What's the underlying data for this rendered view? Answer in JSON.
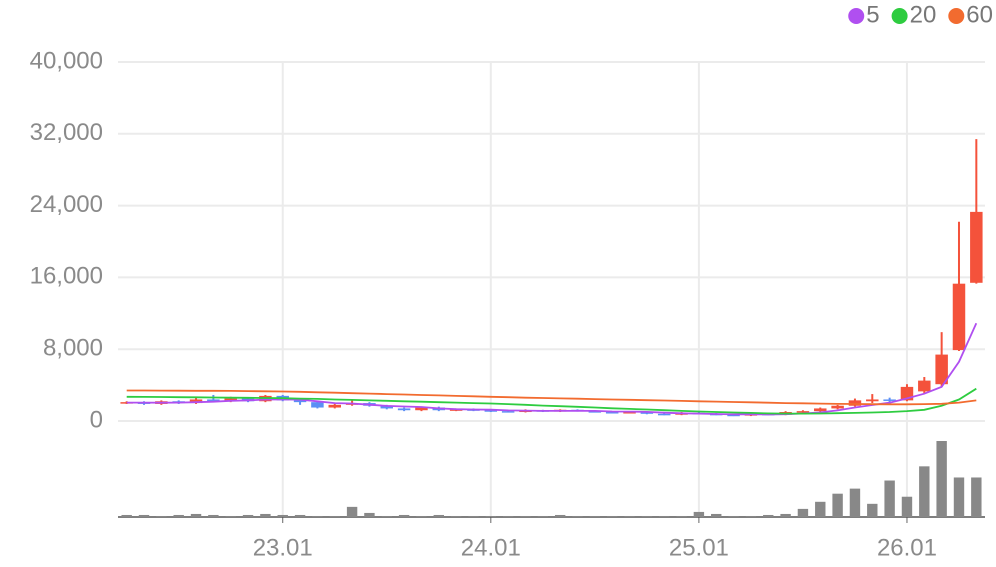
{
  "chart_data": {
    "type": "candlestick",
    "categories": [
      null,
      null,
      null,
      null,
      null,
      null,
      null,
      null,
      null,
      "23.01",
      null,
      null,
      null,
      null,
      null,
      null,
      null,
      null,
      null,
      null,
      null,
      "24.01",
      null,
      null,
      null,
      null,
      null,
      null,
      null,
      null,
      null,
      null,
      null,
      "25.01",
      null,
      null,
      null,
      null,
      null,
      null,
      null,
      null,
      null,
      null,
      null,
      "26.01",
      null,
      null,
      null,
      null
    ],
    "open": [
      2000,
      2100,
      1900,
      2200,
      2000,
      2400,
      2200,
      2500,
      2200,
      2800,
      2300,
      2100,
      1500,
      1800,
      2000,
      1700,
      1400,
      1200,
      1500,
      1200,
      1300,
      1200,
      1100,
      1000,
      1200,
      1050,
      1250,
      1100,
      1000,
      900,
      1000,
      800,
      700,
      900,
      800,
      700,
      600,
      800,
      700,
      1000,
      1100,
      1400,
      1700,
      2200,
      2400,
      2300,
      3300,
      4100,
      7900,
      15400
    ],
    "close": [
      2100,
      1900,
      2200,
      2000,
      2400,
      2200,
      2500,
      2200,
      2800,
      2300,
      2100,
      1500,
      1800,
      2000,
      1700,
      1400,
      1200,
      1500,
      1200,
      1300,
      1200,
      1100,
      1000,
      1200,
      1050,
      1250,
      1100,
      1000,
      900,
      1000,
      800,
      700,
      900,
      800,
      700,
      600,
      800,
      700,
      1000,
      1100,
      1400,
      1700,
      2300,
      2400,
      2300,
      3800,
      4500,
      7400,
      15300,
      23300
    ],
    "high": [
      2200,
      2200,
      2300,
      2300,
      2600,
      2900,
      2700,
      2600,
      2900,
      2900,
      2400,
      2200,
      1900,
      2300,
      2100,
      1800,
      1500,
      1600,
      1600,
      1400,
      1400,
      1300,
      1200,
      1300,
      1250,
      1300,
      1300,
      1200,
      1100,
      1100,
      1050,
      900,
      1000,
      1000,
      900,
      800,
      900,
      900,
      1100,
      1200,
      1500,
      1800,
      2500,
      3000,
      2600,
      4100,
      4900,
      9900,
      22200,
      31400
    ],
    "low": [
      1900,
      1800,
      1800,
      1900,
      1900,
      2100,
      2100,
      2100,
      2100,
      2200,
      1800,
      1400,
      1400,
      1700,
      1600,
      1300,
      1100,
      1100,
      1100,
      1100,
      1100,
      1000,
      950,
      950,
      1000,
      1000,
      1050,
      950,
      850,
      850,
      750,
      650,
      650,
      750,
      650,
      550,
      550,
      650,
      650,
      900,
      1000,
      1300,
      1600,
      2000,
      2100,
      2200,
      3100,
      3800,
      7800,
      15300
    ],
    "up_color": "#f4523b",
    "down_color": "#5b8ff5",
    "volume": [
      2,
      2,
      1,
      2,
      3,
      2,
      1,
      2,
      3,
      2,
      2,
      1,
      1,
      10,
      4,
      1,
      2,
      1,
      2,
      1,
      1,
      1,
      1,
      1,
      1,
      2,
      1,
      1,
      1,
      1,
      1,
      1,
      1,
      5,
      3,
      1,
      1,
      2,
      3,
      8,
      15,
      23,
      28,
      13,
      36,
      20,
      50,
      75,
      39,
      39
    ],
    "volume_color": "#888888",
    "series": [
      {
        "name": "5",
        "color": "#b04ff0",
        "values": [
          2050,
          2050,
          2040,
          2050,
          2100,
          2150,
          2250,
          2300,
          2400,
          2400,
          2380,
          2200,
          2000,
          1950,
          1820,
          1680,
          1620,
          1560,
          1400,
          1320,
          1280,
          1260,
          1180,
          1160,
          1130,
          1120,
          1120,
          1120,
          1060,
          1050,
          1010,
          920,
          860,
          820,
          780,
          740,
          760,
          720,
          760,
          840,
          960,
          1180,
          1500,
          1780,
          2040,
          2520,
          3040,
          3800,
          6600,
          10900
        ]
      },
      {
        "name": "20",
        "color": "#2ecc40",
        "values": [
          2700,
          2690,
          2670,
          2650,
          2640,
          2620,
          2600,
          2580,
          2560,
          2540,
          2500,
          2460,
          2400,
          2350,
          2300,
          2250,
          2200,
          2150,
          2100,
          2050,
          2000,
          1950,
          1880,
          1800,
          1720,
          1650,
          1580,
          1500,
          1420,
          1350,
          1280,
          1200,
          1130,
          1060,
          1000,
          950,
          900,
          850,
          820,
          820,
          840,
          870,
          900,
          950,
          1000,
          1100,
          1250,
          1700,
          2400,
          3600
        ]
      },
      {
        "name": "60",
        "color": "#f26b2f",
        "values": [
          3400,
          3400,
          3390,
          3380,
          3370,
          3360,
          3350,
          3330,
          3310,
          3290,
          3250,
          3200,
          3150,
          3100,
          3050,
          3000,
          2950,
          2900,
          2850,
          2800,
          2750,
          2700,
          2650,
          2600,
          2560,
          2520,
          2480,
          2440,
          2400,
          2360,
          2320,
          2280,
          2240,
          2200,
          2160,
          2120,
          2080,
          2040,
          2000,
          1970,
          1940,
          1910,
          1890,
          1870,
          1860,
          1860,
          1880,
          1920,
          2050,
          2300
        ]
      }
    ],
    "ylim": [
      0,
      40000
    ],
    "yticks": [
      0,
      {
        "value": 8000,
        "label": "8,000"
      },
      {
        "value": 16000,
        "label": "16,000"
      },
      {
        "value": 24000,
        "label": "24,000"
      },
      {
        "value": 32000,
        "label": "32,000"
      },
      {
        "value": 40000,
        "label": "40,000"
      }
    ],
    "grid": true,
    "legend": "top-right"
  }
}
